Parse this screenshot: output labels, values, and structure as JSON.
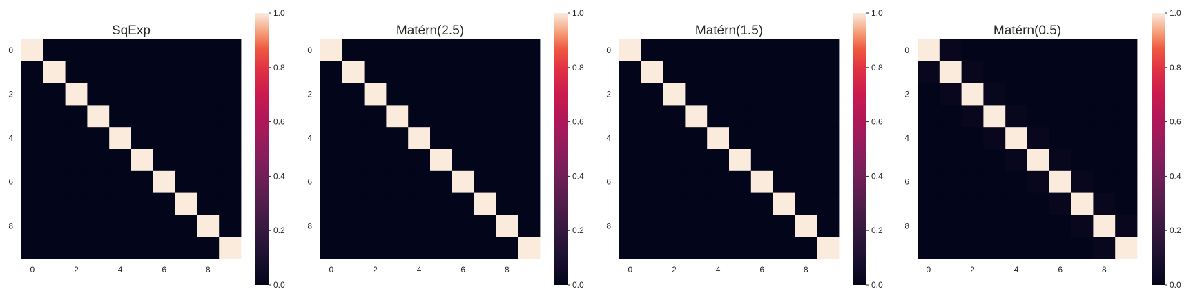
{
  "colors": {
    "background": "#ffffff",
    "text": "#262626",
    "colormap": "rocket"
  },
  "chart_data": [
    {
      "type": "heatmap",
      "title": "SqExp",
      "x": [
        0,
        1,
        2,
        3,
        4,
        5,
        6,
        7,
        8,
        9
      ],
      "y": [
        0,
        1,
        2,
        3,
        4,
        5,
        6,
        7,
        8,
        9
      ],
      "x_tick_labels": [
        "0",
        "2",
        "4",
        "6",
        "8"
      ],
      "y_tick_labels": [
        "0",
        "2",
        "4",
        "6",
        "8"
      ],
      "vmin": 0.0,
      "vmax": 1.0,
      "colorbar_ticks": [
        "0.0",
        "0.2",
        "0.4",
        "0.6",
        "0.8",
        "1.0"
      ],
      "values": [
        [
          1.0,
          0.0,
          0.0,
          0.0,
          0.0,
          0.0,
          0.0,
          0.0,
          0.0,
          0.0
        ],
        [
          0.0,
          1.0,
          0.0,
          0.0,
          0.0,
          0.0,
          0.0,
          0.0,
          0.0,
          0.0
        ],
        [
          0.0,
          0.0,
          1.0,
          0.0,
          0.0,
          0.0,
          0.0,
          0.0,
          0.0,
          0.0
        ],
        [
          0.0,
          0.0,
          0.0,
          1.0,
          0.0,
          0.0,
          0.0,
          0.0,
          0.0,
          0.0
        ],
        [
          0.0,
          0.0,
          0.0,
          0.0,
          1.0,
          0.0,
          0.0,
          0.0,
          0.0,
          0.0
        ],
        [
          0.0,
          0.0,
          0.0,
          0.0,
          0.0,
          1.0,
          0.0,
          0.0,
          0.0,
          0.0
        ],
        [
          0.0,
          0.0,
          0.0,
          0.0,
          0.0,
          0.0,
          1.0,
          0.0,
          0.0,
          0.0
        ],
        [
          0.0,
          0.0,
          0.0,
          0.0,
          0.0,
          0.0,
          0.0,
          1.0,
          0.0,
          0.0
        ],
        [
          0.0,
          0.0,
          0.0,
          0.0,
          0.0,
          0.0,
          0.0,
          0.0,
          1.0,
          0.0
        ],
        [
          0.0,
          0.0,
          0.0,
          0.0,
          0.0,
          0.0,
          0.0,
          0.0,
          0.0,
          1.0
        ]
      ]
    },
    {
      "type": "heatmap",
      "title": "Matérn(2.5)",
      "x": [
        0,
        1,
        2,
        3,
        4,
        5,
        6,
        7,
        8,
        9
      ],
      "y": [
        0,
        1,
        2,
        3,
        4,
        5,
        6,
        7,
        8,
        9
      ],
      "x_tick_labels": [
        "0",
        "2",
        "4",
        "6",
        "8"
      ],
      "y_tick_labels": [
        "0",
        "2",
        "4",
        "6",
        "8"
      ],
      "vmin": 0.0,
      "vmax": 1.0,
      "colorbar_ticks": [
        "0.0",
        "0.2",
        "0.4",
        "0.6",
        "0.8",
        "1.0"
      ],
      "values": [
        [
          1.0,
          0.0,
          0.0,
          0.0,
          0.0,
          0.0,
          0.0,
          0.0,
          0.0,
          0.0
        ],
        [
          0.0,
          1.0,
          0.0,
          0.0,
          0.0,
          0.0,
          0.0,
          0.0,
          0.0,
          0.0
        ],
        [
          0.0,
          0.0,
          1.0,
          0.0,
          0.0,
          0.0,
          0.0,
          0.0,
          0.0,
          0.0
        ],
        [
          0.0,
          0.0,
          0.0,
          1.0,
          0.0,
          0.0,
          0.0,
          0.0,
          0.0,
          0.0
        ],
        [
          0.0,
          0.0,
          0.0,
          0.0,
          1.0,
          0.0,
          0.0,
          0.0,
          0.0,
          0.0
        ],
        [
          0.0,
          0.0,
          0.0,
          0.0,
          0.0,
          1.0,
          0.0,
          0.0,
          0.0,
          0.0
        ],
        [
          0.0,
          0.0,
          0.0,
          0.0,
          0.0,
          0.0,
          1.0,
          0.0,
          0.0,
          0.0
        ],
        [
          0.0,
          0.0,
          0.0,
          0.0,
          0.0,
          0.0,
          0.0,
          1.0,
          0.0,
          0.0
        ],
        [
          0.0,
          0.0,
          0.0,
          0.0,
          0.0,
          0.0,
          0.0,
          0.0,
          1.0,
          0.0
        ],
        [
          0.0,
          0.0,
          0.0,
          0.0,
          0.0,
          0.0,
          0.0,
          0.0,
          0.0,
          1.0
        ]
      ]
    },
    {
      "type": "heatmap",
      "title": "Matérn(1.5)",
      "x": [
        0,
        1,
        2,
        3,
        4,
        5,
        6,
        7,
        8,
        9
      ],
      "y": [
        0,
        1,
        2,
        3,
        4,
        5,
        6,
        7,
        8,
        9
      ],
      "x_tick_labels": [
        "0",
        "2",
        "4",
        "6",
        "8"
      ],
      "y_tick_labels": [
        "0",
        "2",
        "4",
        "6",
        "8"
      ],
      "vmin": 0.0,
      "vmax": 1.0,
      "colorbar_ticks": [
        "0.0",
        "0.2",
        "0.4",
        "0.6",
        "0.8",
        "1.0"
      ],
      "values": [
        [
          1.0,
          0.0,
          0.0,
          0.0,
          0.0,
          0.0,
          0.0,
          0.0,
          0.0,
          0.0
        ],
        [
          0.0,
          1.0,
          0.0,
          0.0,
          0.0,
          0.0,
          0.0,
          0.0,
          0.0,
          0.0
        ],
        [
          0.0,
          0.0,
          1.0,
          0.0,
          0.0,
          0.0,
          0.0,
          0.0,
          0.0,
          0.0
        ],
        [
          0.0,
          0.0,
          0.0,
          1.0,
          0.0,
          0.0,
          0.0,
          0.0,
          0.0,
          0.0
        ],
        [
          0.0,
          0.0,
          0.0,
          0.0,
          1.0,
          0.0,
          0.0,
          0.0,
          0.0,
          0.0
        ],
        [
          0.0,
          0.0,
          0.0,
          0.0,
          0.0,
          1.0,
          0.0,
          0.0,
          0.0,
          0.0
        ],
        [
          0.0,
          0.0,
          0.0,
          0.0,
          0.0,
          0.0,
          1.0,
          0.0,
          0.0,
          0.0
        ],
        [
          0.0,
          0.0,
          0.0,
          0.0,
          0.0,
          0.0,
          0.0,
          1.0,
          0.0,
          0.0
        ],
        [
          0.0,
          0.0,
          0.0,
          0.0,
          0.0,
          0.0,
          0.0,
          0.0,
          1.0,
          0.0
        ],
        [
          0.0,
          0.0,
          0.0,
          0.0,
          0.0,
          0.0,
          0.0,
          0.0,
          0.0,
          1.0
        ]
      ]
    },
    {
      "type": "heatmap",
      "title": "Matérn(0.5)",
      "x": [
        0,
        1,
        2,
        3,
        4,
        5,
        6,
        7,
        8,
        9
      ],
      "y": [
        0,
        1,
        2,
        3,
        4,
        5,
        6,
        7,
        8,
        9
      ],
      "x_tick_labels": [
        "0",
        "2",
        "4",
        "6",
        "8"
      ],
      "y_tick_labels": [
        "0",
        "2",
        "4",
        "6",
        "8"
      ],
      "vmin": 0.0,
      "vmax": 1.0,
      "colorbar_ticks": [
        "0.0",
        "0.2",
        "0.4",
        "0.6",
        "0.8",
        "1.0"
      ],
      "values": [
        [
          1.0,
          0.02,
          0.0,
          0.0,
          0.0,
          0.0,
          0.0,
          0.0,
          0.0,
          0.0
        ],
        [
          0.02,
          1.0,
          0.02,
          0.0,
          0.0,
          0.0,
          0.0,
          0.0,
          0.0,
          0.0
        ],
        [
          0.0,
          0.02,
          1.0,
          0.02,
          0.0,
          0.0,
          0.0,
          0.0,
          0.0,
          0.0
        ],
        [
          0.0,
          0.0,
          0.02,
          1.0,
          0.02,
          0.0,
          0.0,
          0.0,
          0.0,
          0.0
        ],
        [
          0.0,
          0.0,
          0.0,
          0.02,
          1.0,
          0.02,
          0.0,
          0.0,
          0.0,
          0.0
        ],
        [
          0.0,
          0.0,
          0.0,
          0.0,
          0.02,
          1.0,
          0.02,
          0.0,
          0.0,
          0.0
        ],
        [
          0.0,
          0.0,
          0.0,
          0.0,
          0.0,
          0.02,
          1.0,
          0.02,
          0.0,
          0.0
        ],
        [
          0.0,
          0.0,
          0.0,
          0.0,
          0.0,
          0.0,
          0.02,
          1.0,
          0.02,
          0.0
        ],
        [
          0.0,
          0.0,
          0.0,
          0.0,
          0.0,
          0.0,
          0.0,
          0.02,
          1.0,
          0.02
        ],
        [
          0.0,
          0.0,
          0.0,
          0.0,
          0.0,
          0.0,
          0.0,
          0.0,
          0.02,
          1.0
        ]
      ]
    }
  ]
}
